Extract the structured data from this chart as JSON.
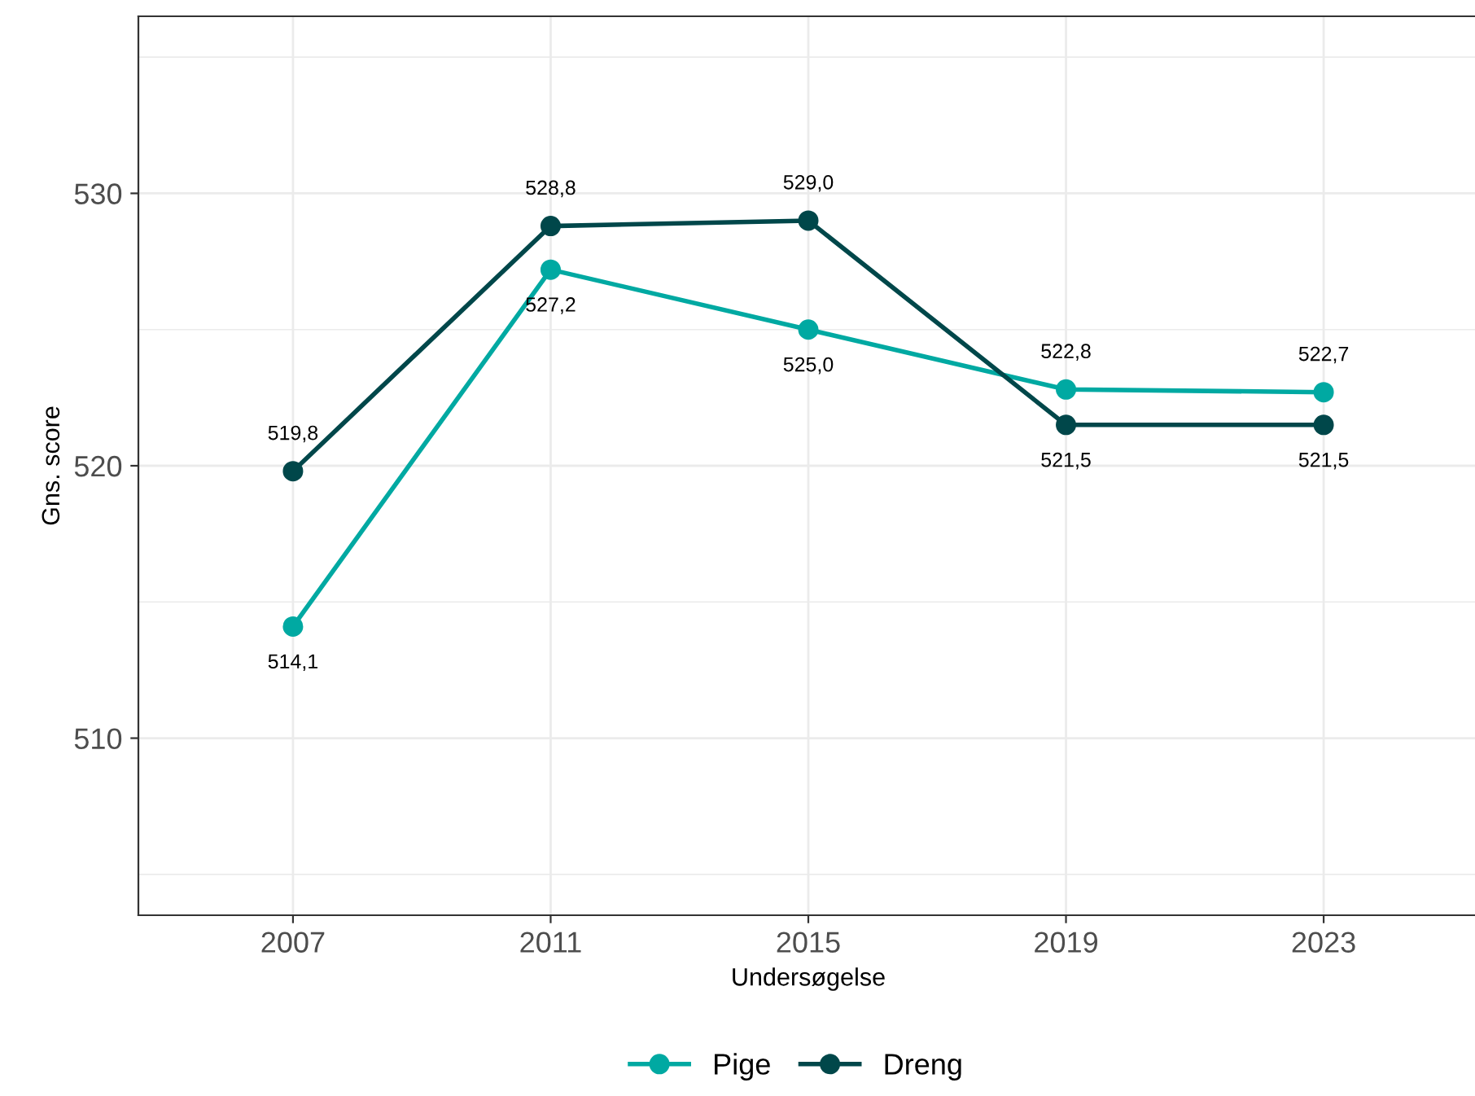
{
  "chart_data": {
    "type": "line",
    "xlabel": "Undersøgelse",
    "ylabel": "Gns. score",
    "categories": [
      "2007",
      "2011",
      "2015",
      "2019",
      "2023"
    ],
    "series": [
      {
        "name": "Pige",
        "color": "#00a9a2",
        "values": [
          514.1,
          527.2,
          525.0,
          522.8,
          522.7
        ],
        "value_labels": [
          "514,1",
          "527,2",
          "525,0",
          "522,8",
          "522,7"
        ]
      },
      {
        "name": "Dreng",
        "color": "#00474a",
        "values": [
          519.8,
          528.8,
          529.0,
          521.5,
          521.5
        ],
        "value_labels": [
          "519,8",
          "528,8",
          "529,0",
          "521,5",
          "521,5"
        ]
      }
    ],
    "ylim": [
      503.5,
      536.5
    ],
    "yticks": [
      {
        "value": 505,
        "label": null
      },
      510,
      {
        "value": 515,
        "label": null
      },
      520,
      {
        "value": 525,
        "label": null
      },
      530,
      {
        "value": 535,
        "label": null
      }
    ],
    "grid": true,
    "legend": "bottom",
    "marker": "circle",
    "line_style": "solid"
  }
}
